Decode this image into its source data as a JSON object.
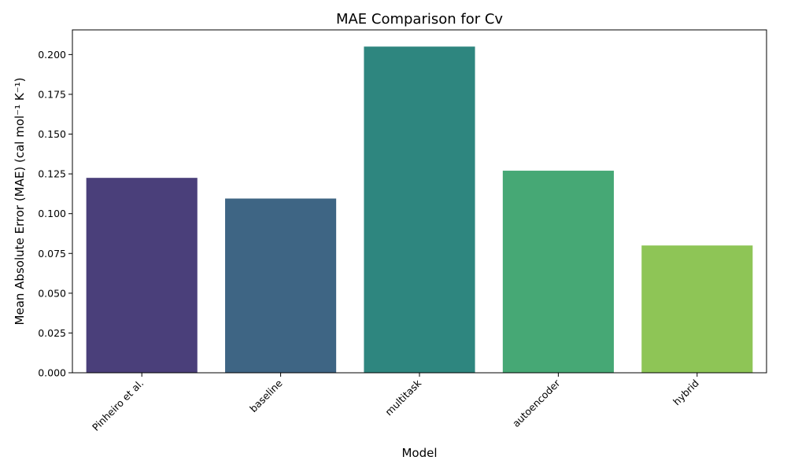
{
  "chart_data": {
    "type": "bar",
    "title": "MAE Comparison for Cv",
    "xlabel": "Model",
    "ylabel": "Mean Absolute Error (MAE) (cal mol⁻¹ K⁻¹)",
    "categories": [
      "Pinheiro et al.",
      "baseline",
      "multitask",
      "autoencoder",
      "hybrid"
    ],
    "values": [
      0.1225,
      0.1095,
      0.205,
      0.127,
      0.08
    ],
    "colors": [
      "#4a3f7a",
      "#3e6584",
      "#2e867f",
      "#46a875",
      "#8ec556"
    ],
    "ylim": [
      0,
      0.2155
    ],
    "yticks": [
      "0.000",
      "0.025",
      "0.050",
      "0.075",
      "0.100",
      "0.125",
      "0.150",
      "0.175",
      "0.200"
    ],
    "grid": false,
    "legend": "none"
  }
}
